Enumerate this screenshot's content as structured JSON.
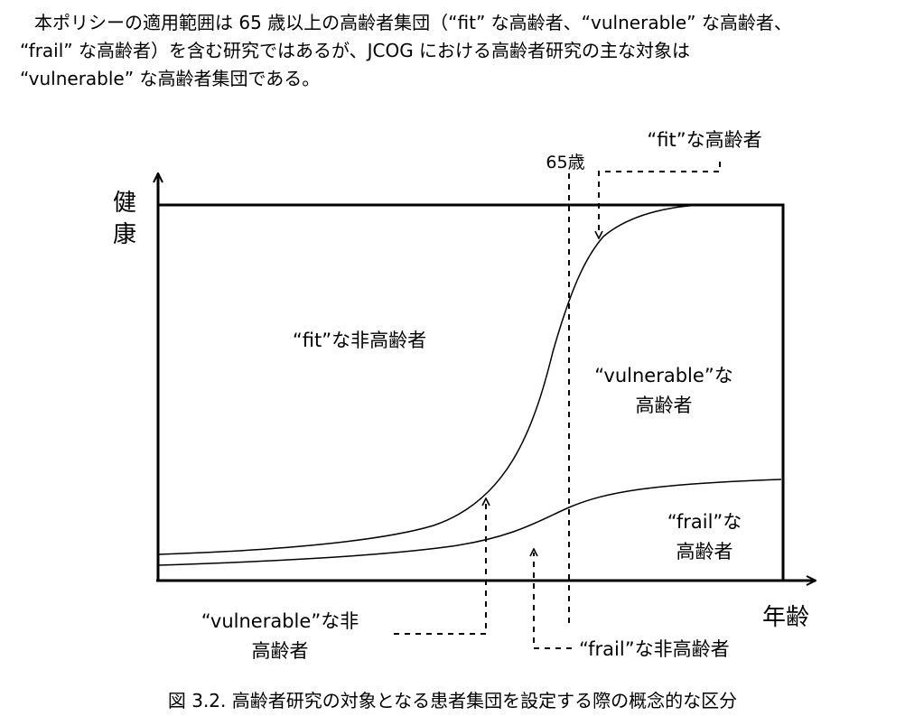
{
  "paragraph": {
    "lines": [
      "本ポリシーの適用範囲は 65 歳以上の高齢者集団（“fit” な高齢者、“vulnerable” な高齢者、",
      "“frail” な高齢者）を含む研究ではあるが、JCOG における高齢者研究の主な対象は",
      "“vulnerable” な高齢者集団である。"
    ]
  },
  "figure": {
    "y_axis_label": [
      "健",
      "康"
    ],
    "x_axis_label": "年齢",
    "age_marker": "65歳",
    "regions": {
      "fit_elderly": "“fit”な高齢者",
      "fit_non_elderly": "“fit”な非高齢者",
      "vulnerable_elderly": [
        "“vulnerable”な",
        "高齢者"
      ],
      "frail_elderly": [
        "“frail”な",
        "高齢者"
      ],
      "vulnerable_non_elderly": [
        "“vulnerable”な非",
        "高齢者"
      ],
      "frail_non_elderly": "“frail”な非高齢者"
    }
  },
  "caption": "図 3.2.  高齢者研究の対象となる患者集団を設定する際の概念的な区分"
}
